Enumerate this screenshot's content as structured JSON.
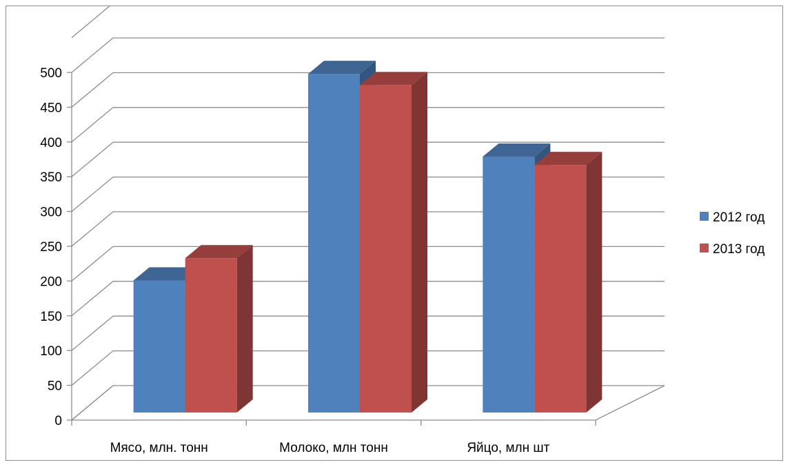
{
  "chart_data": {
    "type": "bar",
    "categories": [
      "Мясо, млн. тонн",
      "Молоко, млн тонн",
      "Яйцо, млн шт"
    ],
    "series": [
      {
        "name": "2012 год",
        "values": [
          193,
          490,
          371
        ],
        "color": "#4F81BD"
      },
      {
        "name": "2013 год",
        "values": [
          225,
          474,
          359
        ],
        "color": "#C0504D"
      }
    ],
    "yticks": [
      0,
      50,
      100,
      150,
      200,
      250,
      300,
      350,
      400,
      450,
      500
    ],
    "ylim": [
      0,
      500
    ],
    "title": "",
    "xlabel": "",
    "ylabel": "",
    "grid": true,
    "style": "3d-clustered-column",
    "legend_position": "right"
  }
}
